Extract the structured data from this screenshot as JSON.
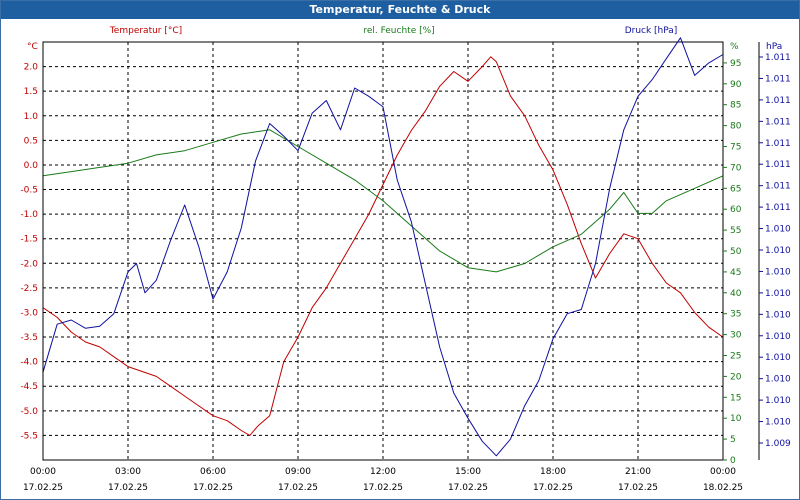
{
  "window": {
    "title": "Temperatur, Feuchte & Druck"
  },
  "chart_data": {
    "type": "line",
    "title": "Temperatur, Feuchte & Druck",
    "grid": true,
    "x_ticks": [
      {
        "time": "00:00",
        "date": "17.02.25"
      },
      {
        "time": "03:00",
        "date": "17.02.25"
      },
      {
        "time": "06:00",
        "date": "17.02.25"
      },
      {
        "time": "09:00",
        "date": "17.02.25"
      },
      {
        "time": "12:00",
        "date": "17.02.25"
      },
      {
        "time": "15:00",
        "date": "17.02.25"
      },
      {
        "time": "18:00",
        "date": "17.02.25"
      },
      {
        "time": "21:00",
        "date": "17.02.25"
      },
      {
        "time": "00:00",
        "date": "18.02.25"
      }
    ],
    "xlim": [
      0,
      24
    ],
    "axes": {
      "left": {
        "label": "Temperatur [°C]",
        "unit": "°C",
        "ylim": [
          -6.0,
          2.5
        ],
        "ticks": [
          2.0,
          1.5,
          1.0,
          0.5,
          0.0,
          -0.5,
          -1.0,
          -1.5,
          -2.0,
          -2.5,
          -3.0,
          -3.5,
          -4.0,
          -4.5,
          -5.0,
          -5.5
        ],
        "tick_labels": [
          "2.0",
          "1.5",
          "1.0",
          "0.5",
          "0.0",
          "-0.5",
          "-1.0",
          "-1.5",
          "-2.0",
          "-2.5",
          "-3.0",
          "-3.5",
          "-4.0",
          "-4.5",
          "-5.0",
          "-5.5"
        ]
      },
      "right_humidity": {
        "label": "rel. Feuchte [%]",
        "unit": "%",
        "ylim": [
          0,
          100
        ],
        "ticks": [
          95,
          90,
          85,
          80,
          75,
          70,
          65,
          60,
          55,
          50,
          45,
          40,
          35,
          30,
          25,
          20,
          15,
          10,
          5,
          0
        ],
        "tick_labels": [
          "95",
          "90",
          "85",
          "80",
          "75",
          "70",
          "65",
          "60",
          "55",
          "50",
          "45",
          "40",
          "35",
          "30",
          "25",
          "20",
          "15",
          "10",
          "5",
          "0"
        ]
      },
      "right_pressure": {
        "label": "Druck [hPa]",
        "unit": "hPa",
        "ylim": [
          1009.0,
          1011.0
        ],
        "tick_labels": [
          "1.011",
          "1.011",
          "1.011",
          "1.011",
          "1.011",
          "1.011",
          "1.011",
          "1.011",
          "1.010",
          "1.010",
          "1.010",
          "1.010",
          "1.010",
          "1.010",
          "1.010",
          "1.010",
          "1.010",
          "1.010",
          "1.009"
        ]
      }
    },
    "series": [
      {
        "name": "Temperatur [°C]",
        "axis": "left",
        "color": "#c00000",
        "x": [
          0,
          0.5,
          1,
          1.5,
          2,
          2.5,
          3,
          3.5,
          4,
          4.5,
          5,
          5.5,
          6,
          6.5,
          7,
          7.3,
          7.6,
          8,
          8.5,
          9,
          9.5,
          10,
          10.5,
          11,
          11.5,
          12,
          12.5,
          13,
          13.5,
          14,
          14.5,
          15,
          15.5,
          15.8,
          16,
          16.5,
          17,
          17.5,
          18,
          18.5,
          19,
          19.5,
          20,
          20.5,
          21,
          21.5,
          22,
          22.5,
          23,
          23.5,
          24
        ],
        "values": [
          -2.9,
          -3.1,
          -3.4,
          -3.6,
          -3.7,
          -3.9,
          -4.1,
          -4.2,
          -4.3,
          -4.5,
          -4.7,
          -4.9,
          -5.1,
          -5.2,
          -5.4,
          -5.5,
          -5.3,
          -5.1,
          -4.0,
          -3.5,
          -2.9,
          -2.5,
          -2.0,
          -1.5,
          -1.0,
          -0.4,
          0.2,
          0.7,
          1.1,
          1.6,
          1.9,
          1.7,
          2.0,
          2.2,
          2.1,
          1.4,
          1.0,
          0.4,
          -0.1,
          -0.8,
          -1.6,
          -2.3,
          -1.8,
          -1.4,
          -1.5,
          -2.0,
          -2.4,
          -2.6,
          -3.0,
          -3.3,
          -3.5
        ]
      },
      {
        "name": "rel. Feuchte [%]",
        "axis": "right_humidity",
        "color": "#1a7a1a",
        "x": [
          0,
          1,
          2,
          3,
          4,
          5,
          6,
          7,
          8,
          9,
          10,
          11,
          12,
          13,
          14,
          15,
          16,
          17,
          18,
          19,
          20,
          20.5,
          21,
          21.5,
          22,
          23,
          24
        ],
        "values": [
          68,
          69,
          70,
          71,
          73,
          74,
          76,
          78,
          79,
          75,
          71,
          67,
          62,
          56,
          50,
          46,
          45,
          47,
          51,
          54,
          60,
          64,
          59,
          59,
          62,
          65,
          68
        ]
      },
      {
        "name": "Druck [hPa]",
        "axis": "right_pressure",
        "color": "#1010a0",
        "x": [
          0,
          0.5,
          1,
          1.5,
          2,
          2.5,
          3,
          3.3,
          3.6,
          4,
          4.5,
          5,
          5.5,
          6,
          6.5,
          7,
          7.5,
          8,
          8.5,
          9,
          9.5,
          10,
          10.5,
          11,
          11.5,
          12,
          12.5,
          13,
          13.5,
          14,
          14.5,
          15,
          15.5,
          16,
          16.5,
          17,
          17.5,
          18,
          18.5,
          19,
          19.5,
          20,
          20.5,
          21,
          21.5,
          22,
          22.5,
          23,
          23.5,
          24
        ],
        "values": [
          1009.42,
          1009.65,
          1009.67,
          1009.63,
          1009.64,
          1009.7,
          1009.9,
          1009.94,
          1009.8,
          1009.86,
          1010.05,
          1010.22,
          1010.02,
          1009.77,
          1009.9,
          1010.11,
          1010.43,
          1010.61,
          1010.55,
          1010.48,
          1010.66,
          1010.72,
          1010.58,
          1010.78,
          1010.74,
          1010.69,
          1010.34,
          1010.14,
          1009.84,
          1009.54,
          1009.32,
          1009.2,
          1009.09,
          1009.02,
          1009.1,
          1009.26,
          1009.38,
          1009.58,
          1009.7,
          1009.72,
          1009.94,
          1010.3,
          1010.58,
          1010.74,
          1010.82,
          1010.92,
          1011.02,
          1010.84,
          1010.9,
          1010.94
        ]
      }
    ]
  }
}
